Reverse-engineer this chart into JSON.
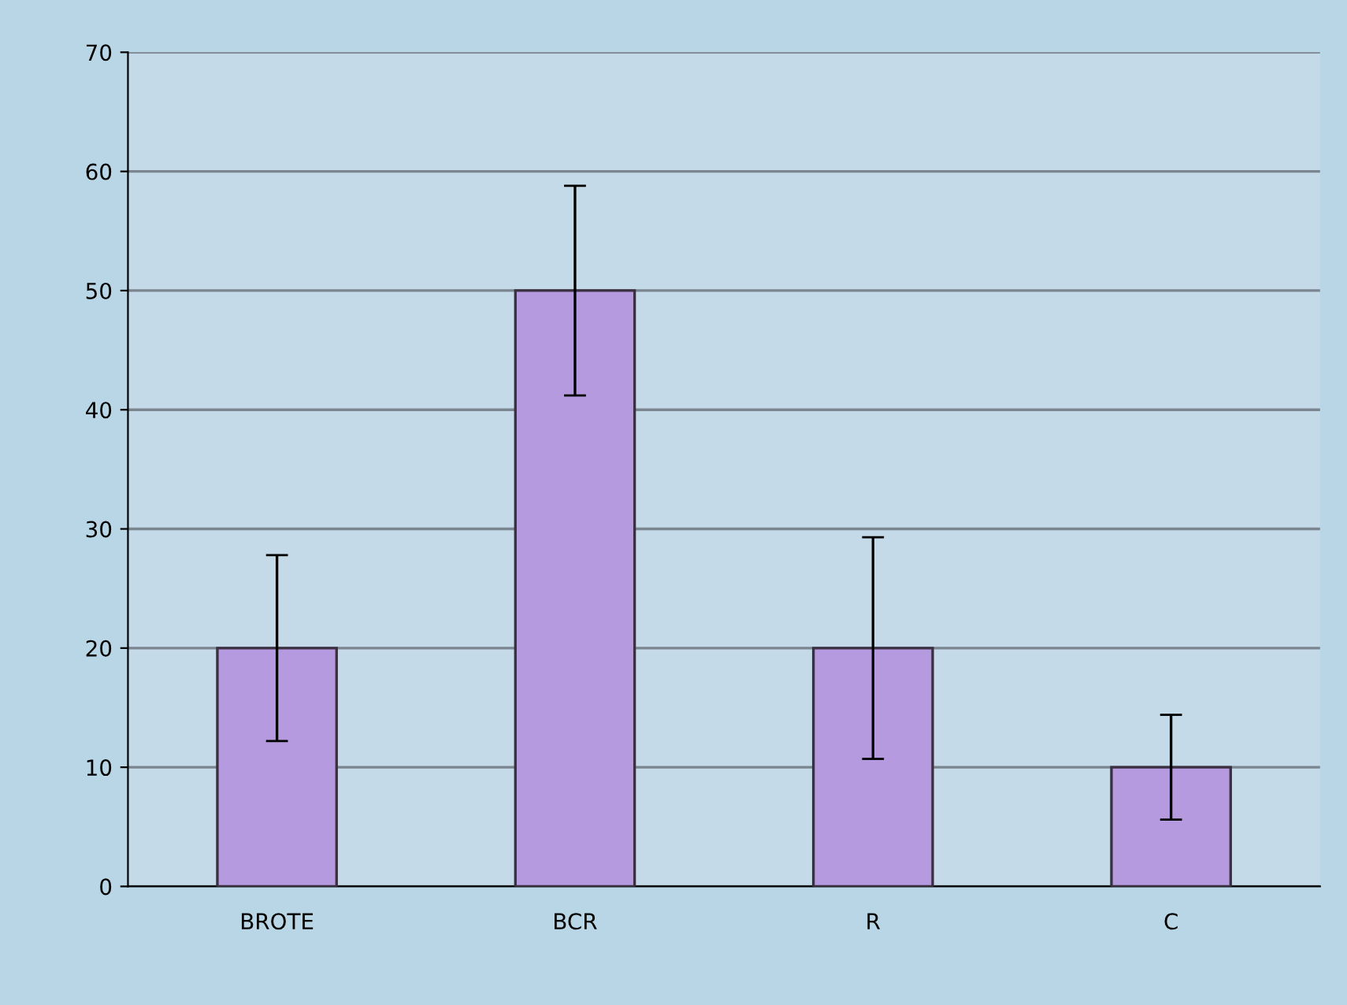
{
  "chart_data": {
    "type": "bar",
    "categories": [
      "BROTE",
      "BCR",
      "R",
      "C"
    ],
    "values": [
      20,
      50,
      20,
      10
    ],
    "errors": [
      7.8,
      8.8,
      9.3,
      4.4
    ],
    "color": "#b59ae0",
    "ylim": [
      0,
      70
    ],
    "yticks": [
      0,
      10,
      20,
      30,
      40,
      50,
      60,
      70
    ],
    "grid": "y"
  }
}
